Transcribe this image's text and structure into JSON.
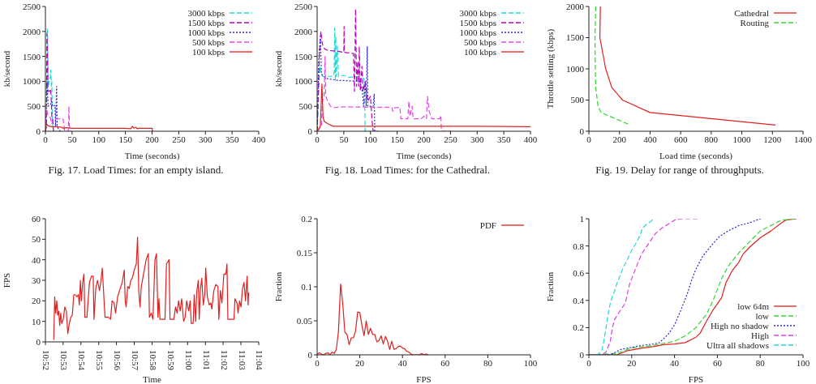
{
  "chart_data": [
    {
      "type": "line",
      "title": "Fig. 17. Load Times: for an empty island.",
      "xlabel": "Time (seconds)",
      "ylabel": "kb/second",
      "xlim": [
        0,
        400
      ],
      "xticks": [
        0,
        50,
        100,
        150,
        200,
        250,
        300,
        350,
        400
      ],
      "ylim": [
        0,
        2500
      ],
      "yticks": [
        0,
        500,
        1000,
        1500,
        2000,
        2500
      ],
      "legend": "top right",
      "series": [
        {
          "name": "3000 kbps",
          "color": "#20d8d8",
          "line_style": "dashed",
          "x": [
            0,
            2,
            3,
            4,
            5,
            7,
            9,
            10,
            11,
            12,
            13,
            15,
            20
          ],
          "values": [
            0,
            300,
            2050,
            2000,
            900,
            1000,
            1050,
            1230,
            900,
            1000,
            200,
            0,
            0
          ]
        },
        {
          "name": "1500 kbps",
          "color": "#c000c0",
          "line_style": "dashed",
          "x": [
            0,
            2,
            3,
            4,
            5,
            8,
            10,
            11,
            12,
            14,
            15,
            18
          ],
          "values": [
            0,
            100,
            1950,
            1500,
            800,
            800,
            850,
            600,
            300,
            200,
            0,
            0
          ]
        },
        {
          "name": "1000 kbps",
          "color": "#2828d0",
          "line_style": "dotted",
          "x": [
            0,
            2,
            3,
            5,
            10,
            12,
            13,
            18,
            19,
            21,
            22,
            24,
            28
          ],
          "values": [
            0,
            500,
            1000,
            500,
            550,
            600,
            500,
            520,
            100,
            900,
            100,
            50,
            0
          ]
        },
        {
          "name": "500 kbps",
          "color": "#e848e8",
          "line_style": "dashed",
          "x": [
            0,
            2,
            4,
            6,
            9,
            12,
            15,
            20,
            33,
            36,
            43,
            44,
            45,
            47
          ],
          "values": [
            0,
            500,
            350,
            300,
            280,
            150,
            250,
            250,
            250,
            0,
            0,
            500,
            100,
            0
          ]
        },
        {
          "name": "100 kbps",
          "color": "#e02020",
          "line_style": "solid",
          "x": [
            0,
            2,
            4,
            8,
            12,
            20,
            30,
            33,
            40,
            50,
            100,
            150,
            160,
            163,
            166,
            170,
            172,
            175,
            200,
            201
          ],
          "values": [
            0,
            150,
            120,
            100,
            90,
            90,
            80,
            60,
            70,
            60,
            60,
            60,
            50,
            100,
            60,
            80,
            50,
            60,
            60,
            0
          ]
        }
      ]
    },
    {
      "type": "line",
      "title": "Fig. 18. Load Times: for the Cathedral.",
      "xlabel": "Time (seconds)",
      "ylabel": "kb/second",
      "xlim": [
        0,
        400
      ],
      "xticks": [
        0,
        50,
        100,
        150,
        200,
        250,
        300,
        350,
        400
      ],
      "ylim": [
        0,
        2500
      ],
      "yticks": [
        0,
        500,
        1000,
        1500,
        2000,
        2500
      ],
      "legend": "top right",
      "series": [
        {
          "name": "3000 kbps",
          "color": "#20d8d8",
          "line_style": "dashed",
          "x": [
            0,
            3,
            5,
            7,
            10,
            15,
            30,
            32,
            33,
            34,
            35,
            36,
            38,
            40,
            50,
            60,
            80,
            88,
            89,
            90,
            100
          ],
          "values": [
            0,
            800,
            1300,
            1200,
            1100,
            1100,
            1100,
            1200,
            2070,
            1000,
            1900,
            1100,
            1700,
            1100,
            1120,
            1080,
            1100,
            1050,
            700,
            0,
            0
          ]
        },
        {
          "name": "1500 kbps",
          "color": "#c000c0",
          "line_style": "dashed",
          "x": [
            0,
            4,
            7,
            9,
            11,
            14,
            20,
            40,
            50,
            50.5,
            51,
            68,
            70,
            72,
            74,
            76,
            78,
            79,
            81,
            84,
            86,
            90,
            95,
            100,
            103,
            105,
            110
          ],
          "values": [
            0,
            1500,
            2000,
            1800,
            1700,
            1650,
            1620,
            1600,
            1580,
            2100,
            1580,
            1560,
            800,
            2450,
            900,
            1400,
            900,
            1700,
            800,
            1300,
            800,
            1000,
            600,
            700,
            200,
            0,
            0
          ]
        },
        {
          "name": "1000 kbps",
          "color": "#2828d0",
          "line_style": "dotted",
          "x": [
            0,
            3,
            6,
            8,
            12,
            20,
            40,
            80,
            85,
            87,
            90,
            92,
            94,
            95,
            100,
            105,
            107,
            108,
            115
          ],
          "values": [
            0,
            1400,
            1900,
            1150,
            1100,
            1050,
            1020,
            1000,
            800,
            500,
            1000,
            500,
            1700,
            500,
            500,
            500,
            750,
            0,
            0
          ]
        },
        {
          "name": "500 kbps",
          "color": "#e848e8",
          "line_style": "dashed",
          "x": [
            0,
            8,
            10,
            13,
            15,
            16,
            20,
            25,
            30,
            50,
            100,
            140,
            142,
            145,
            155,
            157,
            170,
            172,
            174,
            178,
            180,
            195,
            200,
            205,
            207,
            210,
            215,
            230,
            232,
            233,
            250
          ],
          "values": [
            0,
            100,
            600,
            700,
            1500,
            700,
            600,
            500,
            470,
            490,
            480,
            480,
            400,
            470,
            480,
            250,
            250,
            600,
            300,
            500,
            250,
            250,
            300,
            250,
            700,
            400,
            250,
            250,
            320,
            0,
            0
          ]
        },
        {
          "name": "100 kbps",
          "color": "#e02020",
          "line_style": "solid",
          "x": [
            0,
            6,
            9,
            11,
            13,
            20,
            30,
            100,
            200,
            300,
            400
          ],
          "values": [
            0,
            100,
            950,
            300,
            200,
            150,
            100,
            100,
            100,
            100,
            90
          ]
        }
      ]
    },
    {
      "type": "line",
      "title": "Fig. 19. Delay for range of throughputs.",
      "xlabel": "Load time (seconds)",
      "ylabel": "Throttle setting (kbps)",
      "xlim": [
        0,
        1400
      ],
      "xticks": [
        0,
        200,
        400,
        600,
        800,
        1000,
        1200,
        1400
      ],
      "ylim": [
        0,
        2000
      ],
      "yticks": [
        0,
        500,
        1000,
        1500,
        2000
      ],
      "legend": "top right",
      "series": [
        {
          "name": "Cathedral",
          "color": "#e02020",
          "line_style": "solid",
          "x": [
            75,
            72,
            110,
            150,
            220,
            400,
            1220
          ],
          "values": [
            2000,
            1500,
            1000,
            700,
            500,
            300,
            100
          ]
        },
        {
          "name": "Routing",
          "color": "#30d830",
          "line_style": "dashed",
          "x": [
            45,
            40,
            42,
            45,
            60,
            80,
            270
          ],
          "values": [
            2000,
            1500,
            1000,
            700,
            400,
            300,
            100
          ]
        }
      ]
    },
    {
      "type": "line",
      "xlabel": "Time",
      "ylabel": "FPS",
      "xlim": [
        10.8667,
        11.0667
      ],
      "xticks": [
        {
          "value": 10.8667,
          "label": "10:52"
        },
        {
          "value": 10.8833,
          "label": "10:53"
        },
        {
          "value": 10.9,
          "label": "10:54"
        },
        {
          "value": 10.9167,
          "label": "10:55"
        },
        {
          "value": 10.9333,
          "label": "10:56"
        },
        {
          "value": 10.95,
          "label": "10:57"
        },
        {
          "value": 10.9667,
          "label": "10:58"
        },
        {
          "value": 10.9833,
          "label": "10:59"
        },
        {
          "value": 11,
          "label": "11:00"
        },
        {
          "value": 11.0167,
          "label": "11:01"
        },
        {
          "value": 11.0333,
          "label": "11:02"
        },
        {
          "value": 11.05,
          "label": "11:03"
        },
        {
          "value": 11.0667,
          "label": "11:04"
        }
      ],
      "ylim": [
        0,
        60
      ],
      "yticks": [
        0,
        10,
        20,
        30,
        40,
        50,
        60
      ],
      "color": "#e02020",
      "x": [
        10.8745,
        10.8754,
        10.8763,
        10.8773,
        10.8782,
        10.8792,
        10.8801,
        10.8811,
        10.882,
        10.8834,
        10.8849,
        10.8863,
        10.8877,
        10.8891,
        10.8905,
        10.8919,
        10.8933,
        10.8948,
        10.8962,
        10.8976,
        10.8985,
        10.8995,
        10.9004,
        10.9016,
        10.9028,
        10.9037,
        10.9056,
        10.908,
        10.9099,
        10.9115,
        10.9122,
        10.9139,
        10.9155,
        10.9174,
        10.9188,
        10.92,
        10.9217,
        10.9226,
        10.9259,
        10.9278,
        10.9292,
        10.9311,
        10.9325,
        10.9344,
        10.9368,
        10.9387,
        10.9406,
        10.9415,
        10.9424,
        10.9439,
        10.9453,
        10.9467,
        10.9481,
        10.9505,
        10.9519,
        10.9531,
        10.9542,
        10.9554,
        10.9566,
        10.9587,
        10.9611,
        10.9632,
        10.9642,
        10.966,
        10.9675,
        10.9694,
        10.9708,
        10.9722,
        10.9731,
        10.9741,
        10.9788,
        10.9802,
        10.9826,
        10.9835,
        10.9871,
        10.9887,
        10.9901,
        10.9915,
        10.993,
        10.9944,
        10.9963,
        10.9977,
        10.9991,
        11.001,
        11.0024,
        11.0034,
        11.0052,
        11.0062,
        11.0076,
        11.0085,
        11.01,
        11.0109,
        11.0119,
        11.0133,
        11.0147,
        11.0161,
        11.017,
        11.0185,
        11.0203,
        11.0218,
        11.0227,
        11.0246,
        11.0265,
        11.0284,
        11.0293,
        11.0307,
        11.0322,
        11.034,
        11.0359,
        11.0369,
        11.0378,
        11.0435,
        11.0444,
        11.0463,
        11.0473,
        11.0487,
        11.0501,
        11.0515,
        11.0529,
        11.0543,
        11.0558,
        11.0567,
        11.0572
      ],
      "values": [
        1,
        22,
        14,
        20,
        13,
        15,
        8,
        14,
        9,
        11,
        17,
        15,
        4,
        9,
        12,
        13,
        23,
        23,
        22,
        23,
        18,
        30,
        20,
        29,
        33,
        12,
        12,
        29,
        32,
        32,
        11,
        26,
        30,
        25,
        30,
        36,
        20,
        12,
        12,
        11,
        20,
        19,
        14,
        22,
        26,
        29,
        35,
        20,
        17,
        27,
        26,
        30,
        31,
        36,
        38,
        51,
        25,
        17,
        27,
        33,
        40,
        43,
        12,
        14,
        11,
        40,
        43,
        12,
        21,
        11,
        11,
        38,
        40,
        11,
        11,
        17,
        14,
        20,
        15,
        21,
        10,
        12,
        20,
        15,
        20,
        9,
        9,
        23,
        10,
        24,
        30,
        11,
        25,
        31,
        18,
        23,
        36,
        22,
        18,
        19,
        16,
        25,
        28,
        27,
        11,
        25,
        19,
        33,
        33,
        38,
        11,
        11,
        21,
        19,
        14,
        20,
        17,
        26,
        29,
        20,
        32,
        18,
        24
      ]
    },
    {
      "type": "line",
      "xlabel": "FPS",
      "ylabel": "Fraction",
      "xlim": [
        0,
        100
      ],
      "xticks": [
        0,
        20,
        40,
        60,
        80,
        100
      ],
      "ylim": [
        0,
        0.2
      ],
      "yticks": [
        0,
        0.05,
        0.1,
        0.15,
        0.2
      ],
      "legend": "top right",
      "series": [
        {
          "name": "PDF",
          "color": "#e02020",
          "line_style": "solid",
          "x": [
            0,
            1,
            2,
            3,
            4,
            5,
            6,
            7,
            8,
            9,
            10,
            11,
            12,
            13,
            14,
            15,
            16,
            17,
            18,
            19,
            20,
            21,
            22,
            23,
            24,
            25,
            26,
            27,
            28,
            29,
            30,
            31,
            32,
            33,
            34,
            35,
            36,
            37,
            38,
            39,
            40,
            41,
            42,
            43,
            44,
            45,
            48,
            49,
            50,
            51,
            52
          ],
          "values": [
            0.001,
            0.003,
            0.001,
            0,
            0.002,
            0.003,
            0,
            0.004,
            0.002,
            0.008,
            0.035,
            0.104,
            0.075,
            0.033,
            0.03,
            0.015,
            0.025,
            0.025,
            0.035,
            0.063,
            0.062,
            0.043,
            0.028,
            0.05,
            0.03,
            0.039,
            0.03,
            0.03,
            0.019,
            0.021,
            0.028,
            0.016,
            0.027,
            0.02,
            0.008,
            0.02,
            0.008,
            0.009,
            0.012,
            0.013,
            0.01,
            0.009,
            0.005,
            0.004,
            0.001,
            0,
            0,
            0.002,
            0,
            0.001,
            0
          ]
        }
      ]
    },
    {
      "type": "line",
      "xlabel": "FPS",
      "ylabel": "Fraction",
      "xlim": [
        0,
        100
      ],
      "xticks": [
        0,
        20,
        40,
        60,
        80,
        100
      ],
      "ylim": [
        0,
        1
      ],
      "yticks": [
        0,
        0.2,
        0.4,
        0.6,
        0.8,
        1
      ],
      "legend": "bottom right",
      "series": [
        {
          "name": "low 64m",
          "color": "#e02020",
          "line_style": "solid",
          "x": [
            0,
            13,
            18,
            25,
            30,
            35,
            40,
            45,
            50,
            52,
            55,
            58,
            62,
            64,
            67,
            70,
            72,
            75,
            80,
            85,
            90,
            92,
            97
          ],
          "values": [
            0,
            0,
            0.03,
            0.05,
            0.06,
            0.075,
            0.08,
            0.09,
            0.13,
            0.16,
            0.25,
            0.33,
            0.42,
            0.53,
            0.62,
            0.68,
            0.74,
            0.79,
            0.86,
            0.91,
            0.97,
            0.99,
            1
          ]
        },
        {
          "name": "low",
          "color": "#30d830",
          "line_style": "dashed",
          "x": [
            0,
            13,
            20,
            30,
            40,
            45,
            50,
            55,
            58,
            60,
            62,
            65,
            70,
            75,
            80,
            85,
            90,
            97
          ],
          "values": [
            0,
            0.01,
            0.05,
            0.07,
            0.1,
            0.14,
            0.2,
            0.3,
            0.4,
            0.48,
            0.56,
            0.65,
            0.75,
            0.83,
            0.91,
            0.95,
            0.99,
            1
          ]
        },
        {
          "name": "High no shadow",
          "color": "#2828d0",
          "line_style": "dotted",
          "x": [
            0,
            10,
            15,
            20,
            25,
            30,
            33,
            35,
            37,
            40,
            43,
            46,
            48,
            50,
            53,
            57,
            61,
            65,
            70,
            75,
            80,
            81
          ],
          "values": [
            0,
            0,
            0.04,
            0.055,
            0.07,
            0.08,
            0.09,
            0.12,
            0.15,
            0.22,
            0.33,
            0.45,
            0.55,
            0.63,
            0.72,
            0.8,
            0.87,
            0.91,
            0.95,
            0.97,
            1,
            1
          ]
        },
        {
          "name": "High",
          "color": "#e040e0",
          "line_style": "dashed",
          "x": [
            0,
            6,
            8,
            10,
            11,
            12,
            14,
            17,
            18,
            19,
            21,
            23,
            25,
            28,
            31,
            34,
            37,
            40,
            43,
            51
          ],
          "values": [
            0,
            0,
            0.02,
            0.1,
            0.2,
            0.26,
            0.31,
            0.38,
            0.45,
            0.52,
            0.6,
            0.68,
            0.75,
            0.82,
            0.89,
            0.93,
            0.96,
            0.99,
            1,
            1
          ]
        },
        {
          "name": "Ultra all shadows",
          "color": "#20d8d8",
          "line_style": "dashed",
          "x": [
            0,
            4,
            6,
            7,
            8,
            9,
            10,
            11,
            12,
            13,
            14,
            15,
            16,
            18,
            20,
            22,
            24,
            25,
            27,
            29,
            30
          ],
          "values": [
            0,
            0,
            0.03,
            0.1,
            0.2,
            0.3,
            0.38,
            0.43,
            0.47,
            0.52,
            0.56,
            0.6,
            0.64,
            0.7,
            0.77,
            0.82,
            0.88,
            0.93,
            0.96,
            0.98,
            1
          ]
        }
      ]
    }
  ]
}
